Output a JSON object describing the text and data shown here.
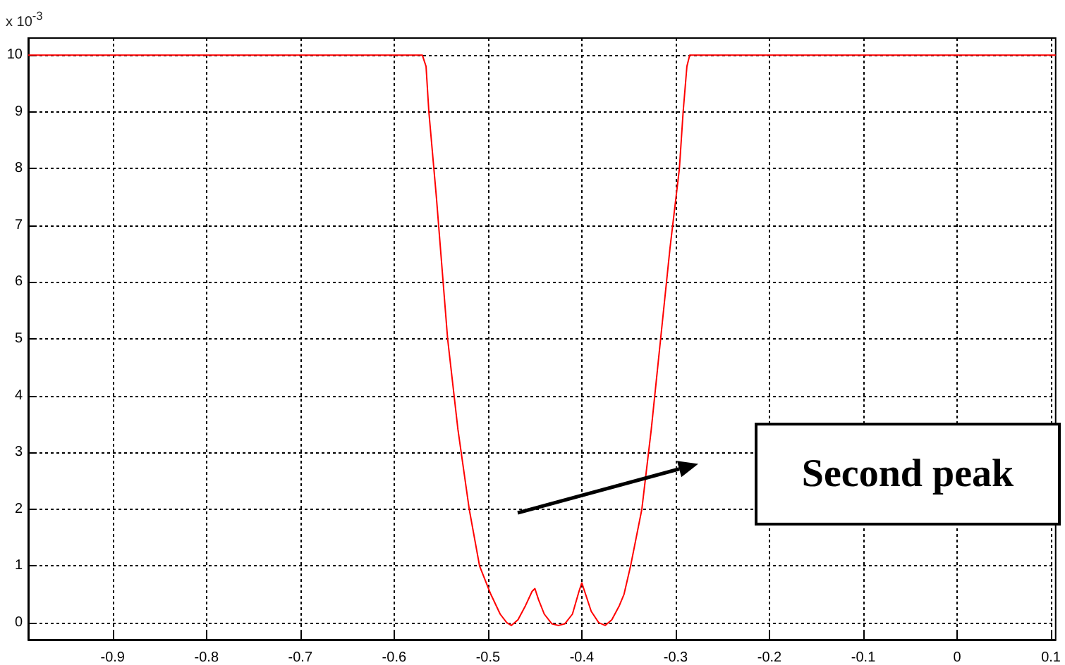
{
  "chart_data": {
    "type": "line",
    "x": [
      -0.99,
      -0.57,
      -0.566,
      -0.563,
      -0.555,
      -0.543,
      -0.532,
      -0.52,
      -0.509,
      -0.497,
      -0.487,
      -0.48,
      -0.475,
      -0.468,
      -0.46,
      -0.453,
      -0.45,
      -0.446,
      -0.44,
      -0.432,
      -0.425,
      -0.418,
      -0.41,
      -0.403,
      -0.4,
      -0.396,
      -0.39,
      -0.382,
      -0.375,
      -0.368,
      -0.36,
      -0.355,
      -0.348,
      -0.336,
      -0.326,
      -0.316,
      -0.306,
      -0.296,
      -0.292,
      -0.288,
      -0.285,
      0.105
    ],
    "series": [
      {
        "color": "#ff0000",
        "values": [
          10,
          10,
          9.8,
          9,
          7.5,
          5,
          3.4,
          2,
          1,
          0.5,
          0.15,
          0,
          -0.05,
          0.05,
          0.3,
          0.55,
          0.6,
          0.4,
          0.15,
          -0.02,
          -0.05,
          -0.02,
          0.15,
          0.55,
          0.7,
          0.5,
          0.2,
          0,
          -0.05,
          0.05,
          0.3,
          0.5,
          1,
          2,
          3.4,
          5,
          6.6,
          8,
          9,
          9.8,
          10,
          10
        ]
      }
    ],
    "xlim": [
      -0.99,
      0.105
    ],
    "xticks": [
      -0.9,
      -0.8,
      -0.7,
      -0.6,
      -0.5,
      -0.4,
      -0.3,
      -0.2,
      -0.1,
      0,
      0.1
    ],
    "ylim": [
      -0.3,
      10.3
    ],
    "yticks": [
      0,
      1,
      2,
      3,
      4,
      5,
      6,
      7,
      8,
      9,
      10
    ],
    "grid": true,
    "annotations": [
      "x 10$^{-3}$",
      "Second peak"
    ]
  }
}
